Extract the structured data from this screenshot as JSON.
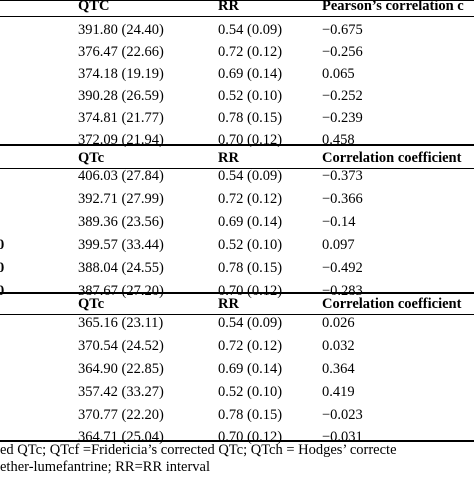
{
  "sections": [
    {
      "header": {
        "c1": "QTC",
        "c2": "RR",
        "c3": "Pearson’s correlation c"
      },
      "rows": [
        {
          "c1": "391.80 (24.40)",
          "c2": "0.54 (0.09)",
          "c3": "−0.675"
        },
        {
          "c1": "376.47 (22.66)",
          "c2": "0.72 (0.12)",
          "c3": "−0.256"
        },
        {
          "c1": "374.18 (19.19)",
          "c2": "0.69 (0.14)",
          "c3": "0.065"
        },
        {
          "c1": "390.28 (26.59)",
          "c2": "0.52 (0.10)",
          "c3": "−0.252"
        },
        {
          "c1": "374.81 (21.77)",
          "c2": "0.78 (0.15)",
          "c3": "−0.239"
        },
        {
          "c1": "372.09 (21.94)",
          "c2": "0.70 (0.12)",
          "c3": "0.458"
        }
      ]
    },
    {
      "header": {
        "c1": "QTc",
        "c2": "RR",
        "c3": "Correlation coefficient"
      },
      "rows": [
        {
          "c1": "406.03 (27.84)",
          "c2": "0.54 (0.09)",
          "c3": "−0.373"
        },
        {
          "c1": "392.71 (27.99)",
          "c2": "0.72 (0.12)",
          "c3": "−0.366"
        },
        {
          "c1": "389.36 (23.56)",
          "c2": "0.69 (0.14)",
          "c3": "−0.14"
        },
        {
          "c1": "399.57 (33.44)",
          "c2": "0.52 (0.10)",
          "c3": "0.097"
        },
        {
          "c1": "388.04 (24.55)",
          "c2": "0.78 (0.15)",
          "c3": "−0.492"
        },
        {
          "c1": "387.67 (27.20)",
          "c2": "0.70 (0.12)",
          "c3": "−0.283"
        }
      ]
    },
    {
      "header": {
        "c1": "QTc",
        "c2": "RR",
        "c3": "Correlation coefficient"
      },
      "rows": [
        {
          "c1": "365.16 (23.11)",
          "c2": "0.54 (0.09)",
          "c3": "0.026"
        },
        {
          "c1": "370.54 (24.52)",
          "c2": "0.72 (0.12)",
          "c3": "0.032"
        },
        {
          "c1": "364.90 (22.85)",
          "c2": "0.69 (0.14)",
          "c3": "0.364"
        },
        {
          "c1": "357.42 (33.27)",
          "c2": "0.52 (0.10)",
          "c3": "0.419"
        },
        {
          "c1": "370.77 (22.20)",
          "c2": "0.78 (0.15)",
          "c3": "−0.023"
        },
        {
          "c1": "364.71 (25.04)",
          "c2": "0.70 (0.12)",
          "c3": "−0.031"
        }
      ]
    }
  ],
  "edge_marks": [
    "",
    "",
    "0",
    "0",
    "0"
  ],
  "footnote": {
    "line1": "ed QTc; QTcf =Fridericia’s corrected QTc; QTch = Hodges’ correcte",
    "line2": "ether-lumefantrine; RR=RR interval"
  }
}
